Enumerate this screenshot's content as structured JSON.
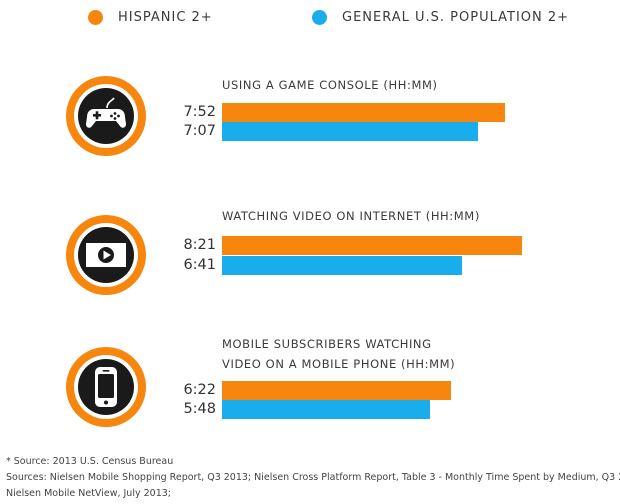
{
  "legend": {
    "hispanic": {
      "label": "HISPANIC 2+",
      "color": "#F7860F"
    },
    "general": {
      "label": "GENERAL U.S. POPULATION 2+",
      "color": "#1AADEC"
    }
  },
  "chart_data": {
    "type": "bar",
    "orientation": "horizontal",
    "value_unit": "HH:MM",
    "series": [
      {
        "name": "HISPANIC 2+",
        "color": "#F7860F"
      },
      {
        "name": "GENERAL U.S. POPULATION 2+",
        "color": "#1AADEC"
      }
    ],
    "groups": [
      {
        "title_lines": [
          "USING A GAME CONSOLE (HH:MM)"
        ],
        "icon": "game-controller-icon",
        "values": [
          {
            "series": "HISPANIC 2+",
            "label": "7:52",
            "hours": 7.867
          },
          {
            "series": "GENERAL U.S. POPULATION 2+",
            "label": "7:07",
            "hours": 7.117
          }
        ]
      },
      {
        "title_lines": [
          "WATCHING VIDEO ON INTERNET (HH:MM)"
        ],
        "icon": "video-play-icon",
        "values": [
          {
            "series": "HISPANIC 2+",
            "label": "8:21",
            "hours": 8.35
          },
          {
            "series": "GENERAL U.S. POPULATION 2+",
            "label": "6:41",
            "hours": 6.683
          }
        ]
      },
      {
        "title_lines": [
          "MOBILE SUBSCRIBERS WATCHING",
          "VIDEO ON A MOBILE PHONE (HH:MM)"
        ],
        "icon": "mobile-phone-icon",
        "values": [
          {
            "series": "HISPANIC 2+",
            "label": "6:22",
            "hours": 6.367
          },
          {
            "series": "GENERAL U.S. POPULATION 2+",
            "label": "5:48",
            "hours": 5.8
          }
        ]
      }
    ]
  },
  "footnotes": [
    "* Source: 2013 U.S. Census Bureau",
    "Sources: Nielsen Mobile Shopping Report, Q3 2013; Nielsen Cross Platform Report, Table 3 - Monthly Time Spent by Medium, Q3 2013;",
    "Nielsen Mobile NetView, July 2013;"
  ]
}
